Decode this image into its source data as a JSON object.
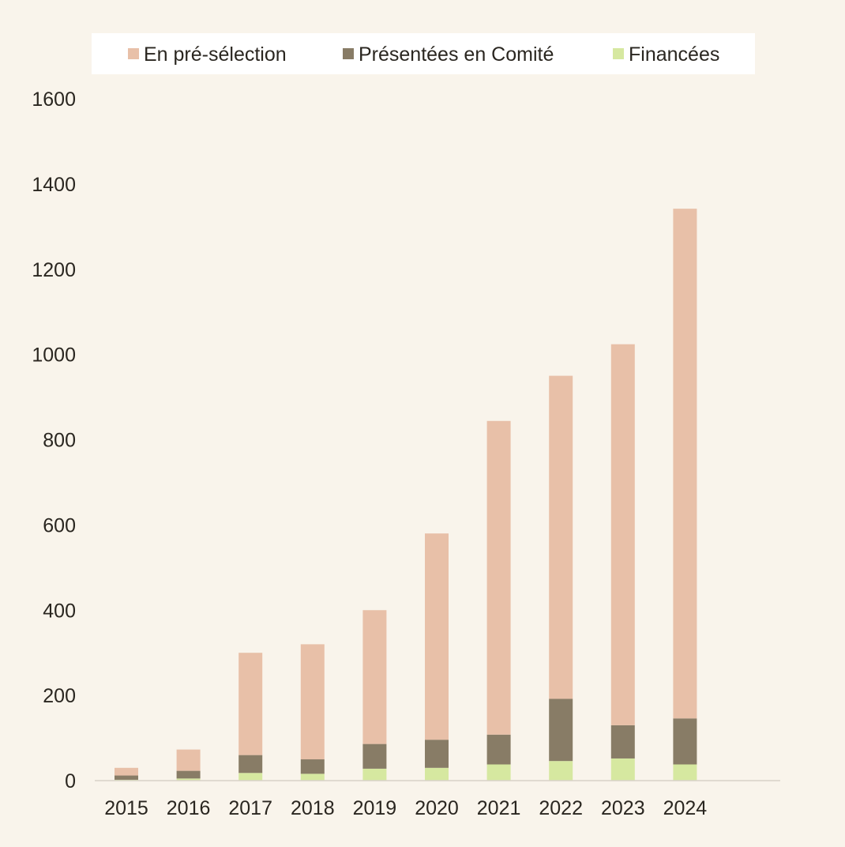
{
  "chart_data": {
    "type": "bar",
    "stacked": true,
    "title": "",
    "xlabel": "",
    "ylabel": "",
    "categories": [
      "2015",
      "2016",
      "2017",
      "2018",
      "2019",
      "2020",
      "2021",
      "2022",
      "2023",
      "2024"
    ],
    "ylim": [
      0,
      1600
    ],
    "yticks": [
      0,
      200,
      400,
      600,
      800,
      1000,
      1200,
      1400,
      1600
    ],
    "grid": false,
    "legend_position": "top",
    "series": [
      {
        "name": "Financées",
        "color": "#d6e8a0",
        "values": [
          2,
          5,
          18,
          16,
          28,
          30,
          38,
          46,
          52,
          38
        ]
      },
      {
        "name": "Présentées en Comité",
        "color": "#887c66",
        "values": [
          10,
          18,
          42,
          34,
          58,
          66,
          70,
          146,
          78,
          108
        ]
      },
      {
        "name": "En pré-sélection",
        "color": "#e8c0a8",
        "values": [
          18,
          50,
          240,
          270,
          314,
          484,
          736,
          758,
          894,
          1196
        ]
      }
    ],
    "legend_order": [
      2,
      1,
      0
    ]
  }
}
